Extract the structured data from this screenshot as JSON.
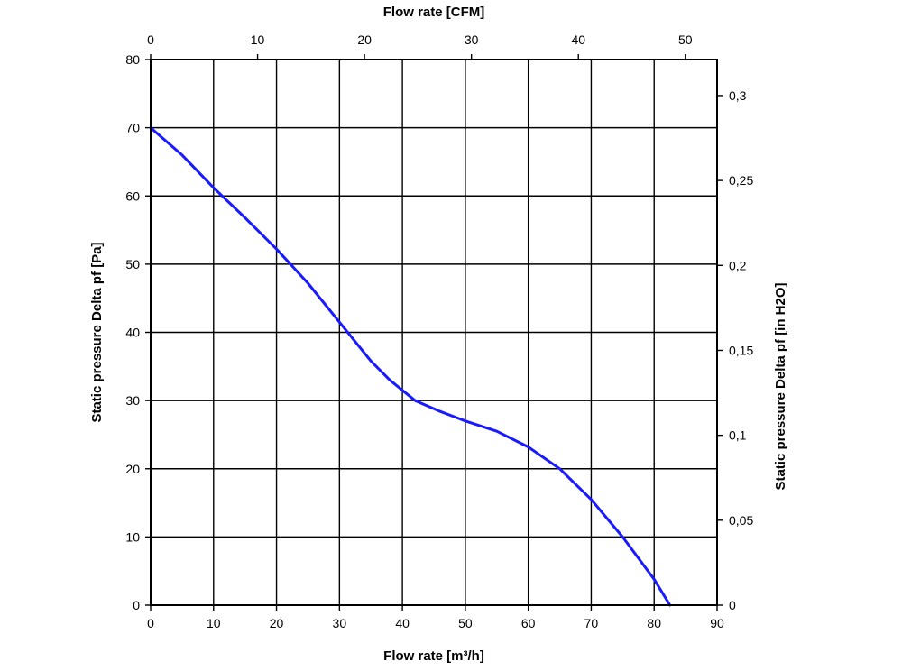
{
  "chart_data": {
    "type": "line",
    "title": "",
    "xlabel": "Flow rate [m³/h]",
    "ylabel": "Static pressure Delta pf [Pa]",
    "x2label": "Flow rate [CFM]",
    "y2label": "Static pressure Delta pf [in H2O]",
    "xlim": [
      0,
      90
    ],
    "ylim": [
      0,
      80
    ],
    "x2lim": [
      0,
      52.97
    ],
    "y2lim": [
      0,
      0.3212
    ],
    "x_ticks": [
      "0",
      "10",
      "20",
      "30",
      "40",
      "50",
      "60",
      "70",
      "80",
      "90"
    ],
    "y_ticks": [
      "0",
      "10",
      "20",
      "30",
      "40",
      "50",
      "60",
      "70",
      "80"
    ],
    "x2_ticks": [
      "0",
      "10",
      "20",
      "30",
      "40",
      "50"
    ],
    "y2_ticks": [
      "0",
      "0,05",
      "0,1",
      "0,15",
      "0,2",
      "0,25",
      "0,3"
    ],
    "grid": true,
    "series": [
      {
        "color": "#1a1aff",
        "x": [
          0,
          5,
          10,
          15,
          20,
          25,
          30,
          35,
          38,
          42,
          46,
          50,
          55,
          60,
          65,
          70,
          75,
          80,
          82.5
        ],
        "y": [
          70,
          66,
          61.2,
          56.8,
          52.2,
          47.2,
          41.5,
          35.8,
          33,
          30,
          28.4,
          27,
          25.5,
          23.2,
          20,
          15.5,
          10,
          3.8,
          0
        ]
      }
    ]
  }
}
